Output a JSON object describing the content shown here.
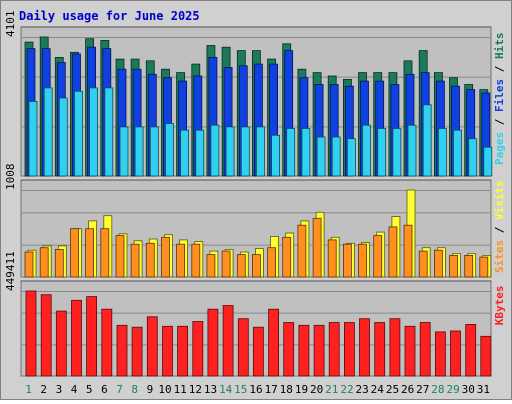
{
  "title": "Daily usage for June 2025",
  "days": [
    "1",
    "2",
    "3",
    "4",
    "5",
    "6",
    "7",
    "8",
    "9",
    "10",
    "11",
    "12",
    "13",
    "14",
    "15",
    "16",
    "17",
    "18",
    "19",
    "20",
    "21",
    "22",
    "23",
    "24",
    "25",
    "26",
    "27",
    "28",
    "29",
    "30",
    "31"
  ],
  "weekend_days": [
    "1",
    "7",
    "8",
    "14",
    "15",
    "21",
    "22",
    "28",
    "29"
  ],
  "colors": {
    "hits": "#1a7a5a",
    "files": "#1040e0",
    "pages": "#30d0f0",
    "visits": "#ffff30",
    "sites": "#ff9020",
    "kbytes": "#ff2020",
    "panel_bg": "#c0c0c0",
    "frame_bg": "#d0d0d0",
    "title": "#0000cc",
    "weekend": "#208060",
    "weekday": "#000000"
  },
  "chart_data": [
    {
      "type": "bar",
      "title": "Daily usage for June 2025",
      "ylim": [
        0,
        4101
      ],
      "y_tick_labels": [
        "4101"
      ],
      "legend": [
        {
          "text": "Pages",
          "color": "#30d0f0"
        },
        {
          "text": " / ",
          "color": "#000000"
        },
        {
          "text": "Files",
          "color": "#1040e0"
        },
        {
          "text": " / ",
          "color": "#000000"
        },
        {
          "text": "Hits",
          "color": "#1a7a5a"
        }
      ],
      "series": [
        {
          "name": "Hits",
          "values": [
            3950,
            4101,
            3500,
            3650,
            4050,
            4000,
            3450,
            3450,
            3400,
            3150,
            3050,
            3300,
            3850,
            3800,
            3700,
            3700,
            3450,
            3900,
            3150,
            3050,
            2950,
            2850,
            3050,
            3050,
            3050,
            3400,
            3700,
            3050,
            2900,
            2700,
            2550
          ]
        },
        {
          "name": "Files",
          "values": [
            3760,
            3760,
            3350,
            3600,
            3800,
            3760,
            3150,
            3150,
            3000,
            2900,
            2800,
            2950,
            3500,
            3200,
            3250,
            3300,
            3300,
            3700,
            2900,
            2700,
            2700,
            2650,
            2800,
            2800,
            2700,
            3000,
            3050,
            2800,
            2650,
            2550,
            2450
          ]
        },
        {
          "name": "Pages",
          "values": [
            2200,
            2600,
            2300,
            2500,
            2600,
            2600,
            1450,
            1450,
            1450,
            1550,
            1350,
            1350,
            1500,
            1450,
            1450,
            1450,
            1200,
            1400,
            1400,
            1150,
            1150,
            1100,
            1500,
            1400,
            1400,
            1500,
            2100,
            1400,
            1350,
            1100,
            850
          ]
        }
      ]
    },
    {
      "type": "bar",
      "ylim": [
        0,
        1008
      ],
      "y_tick_labels": [
        "1008"
      ],
      "legend": [
        {
          "text": "Sites",
          "color": "#ff9020"
        },
        {
          "text": " / ",
          "color": "#000000"
        },
        {
          "text": "Visits",
          "color": "#ffff30"
        }
      ],
      "series": [
        {
          "name": "Visits",
          "values": [
            310,
            360,
            360,
            560,
            650,
            710,
            500,
            420,
            440,
            490,
            430,
            410,
            300,
            320,
            290,
            330,
            470,
            510,
            650,
            750,
            460,
            390,
            400,
            520,
            700,
            1008,
            340,
            340,
            270,
            270,
            250
          ]
        },
        {
          "name": "Sites",
          "values": [
            290,
            340,
            320,
            560,
            560,
            560,
            480,
            380,
            390,
            460,
            380,
            380,
            260,
            300,
            260,
            260,
            340,
            460,
            600,
            680,
            430,
            380,
            380,
            480,
            580,
            600,
            300,
            310,
            250,
            250,
            230
          ]
        }
      ]
    },
    {
      "type": "bar",
      "ylim": [
        0,
        449411
      ],
      "y_tick_labels": [
        "449411"
      ],
      "legend": [
        {
          "text": "KBytes",
          "color": "#ff2020"
        }
      ],
      "series": [
        {
          "name": "KBytes",
          "values": [
            449411,
            430000,
            343000,
            400000,
            420000,
            353000,
            268000,
            258000,
            313000,
            263000,
            263000,
            288000,
            353000,
            373000,
            303000,
            258000,
            353000,
            283000,
            268000,
            268000,
            283000,
            283000,
            303000,
            283000,
            303000,
            263000,
            283000,
            233000,
            238000,
            273000,
            210000
          ]
        }
      ]
    }
  ]
}
